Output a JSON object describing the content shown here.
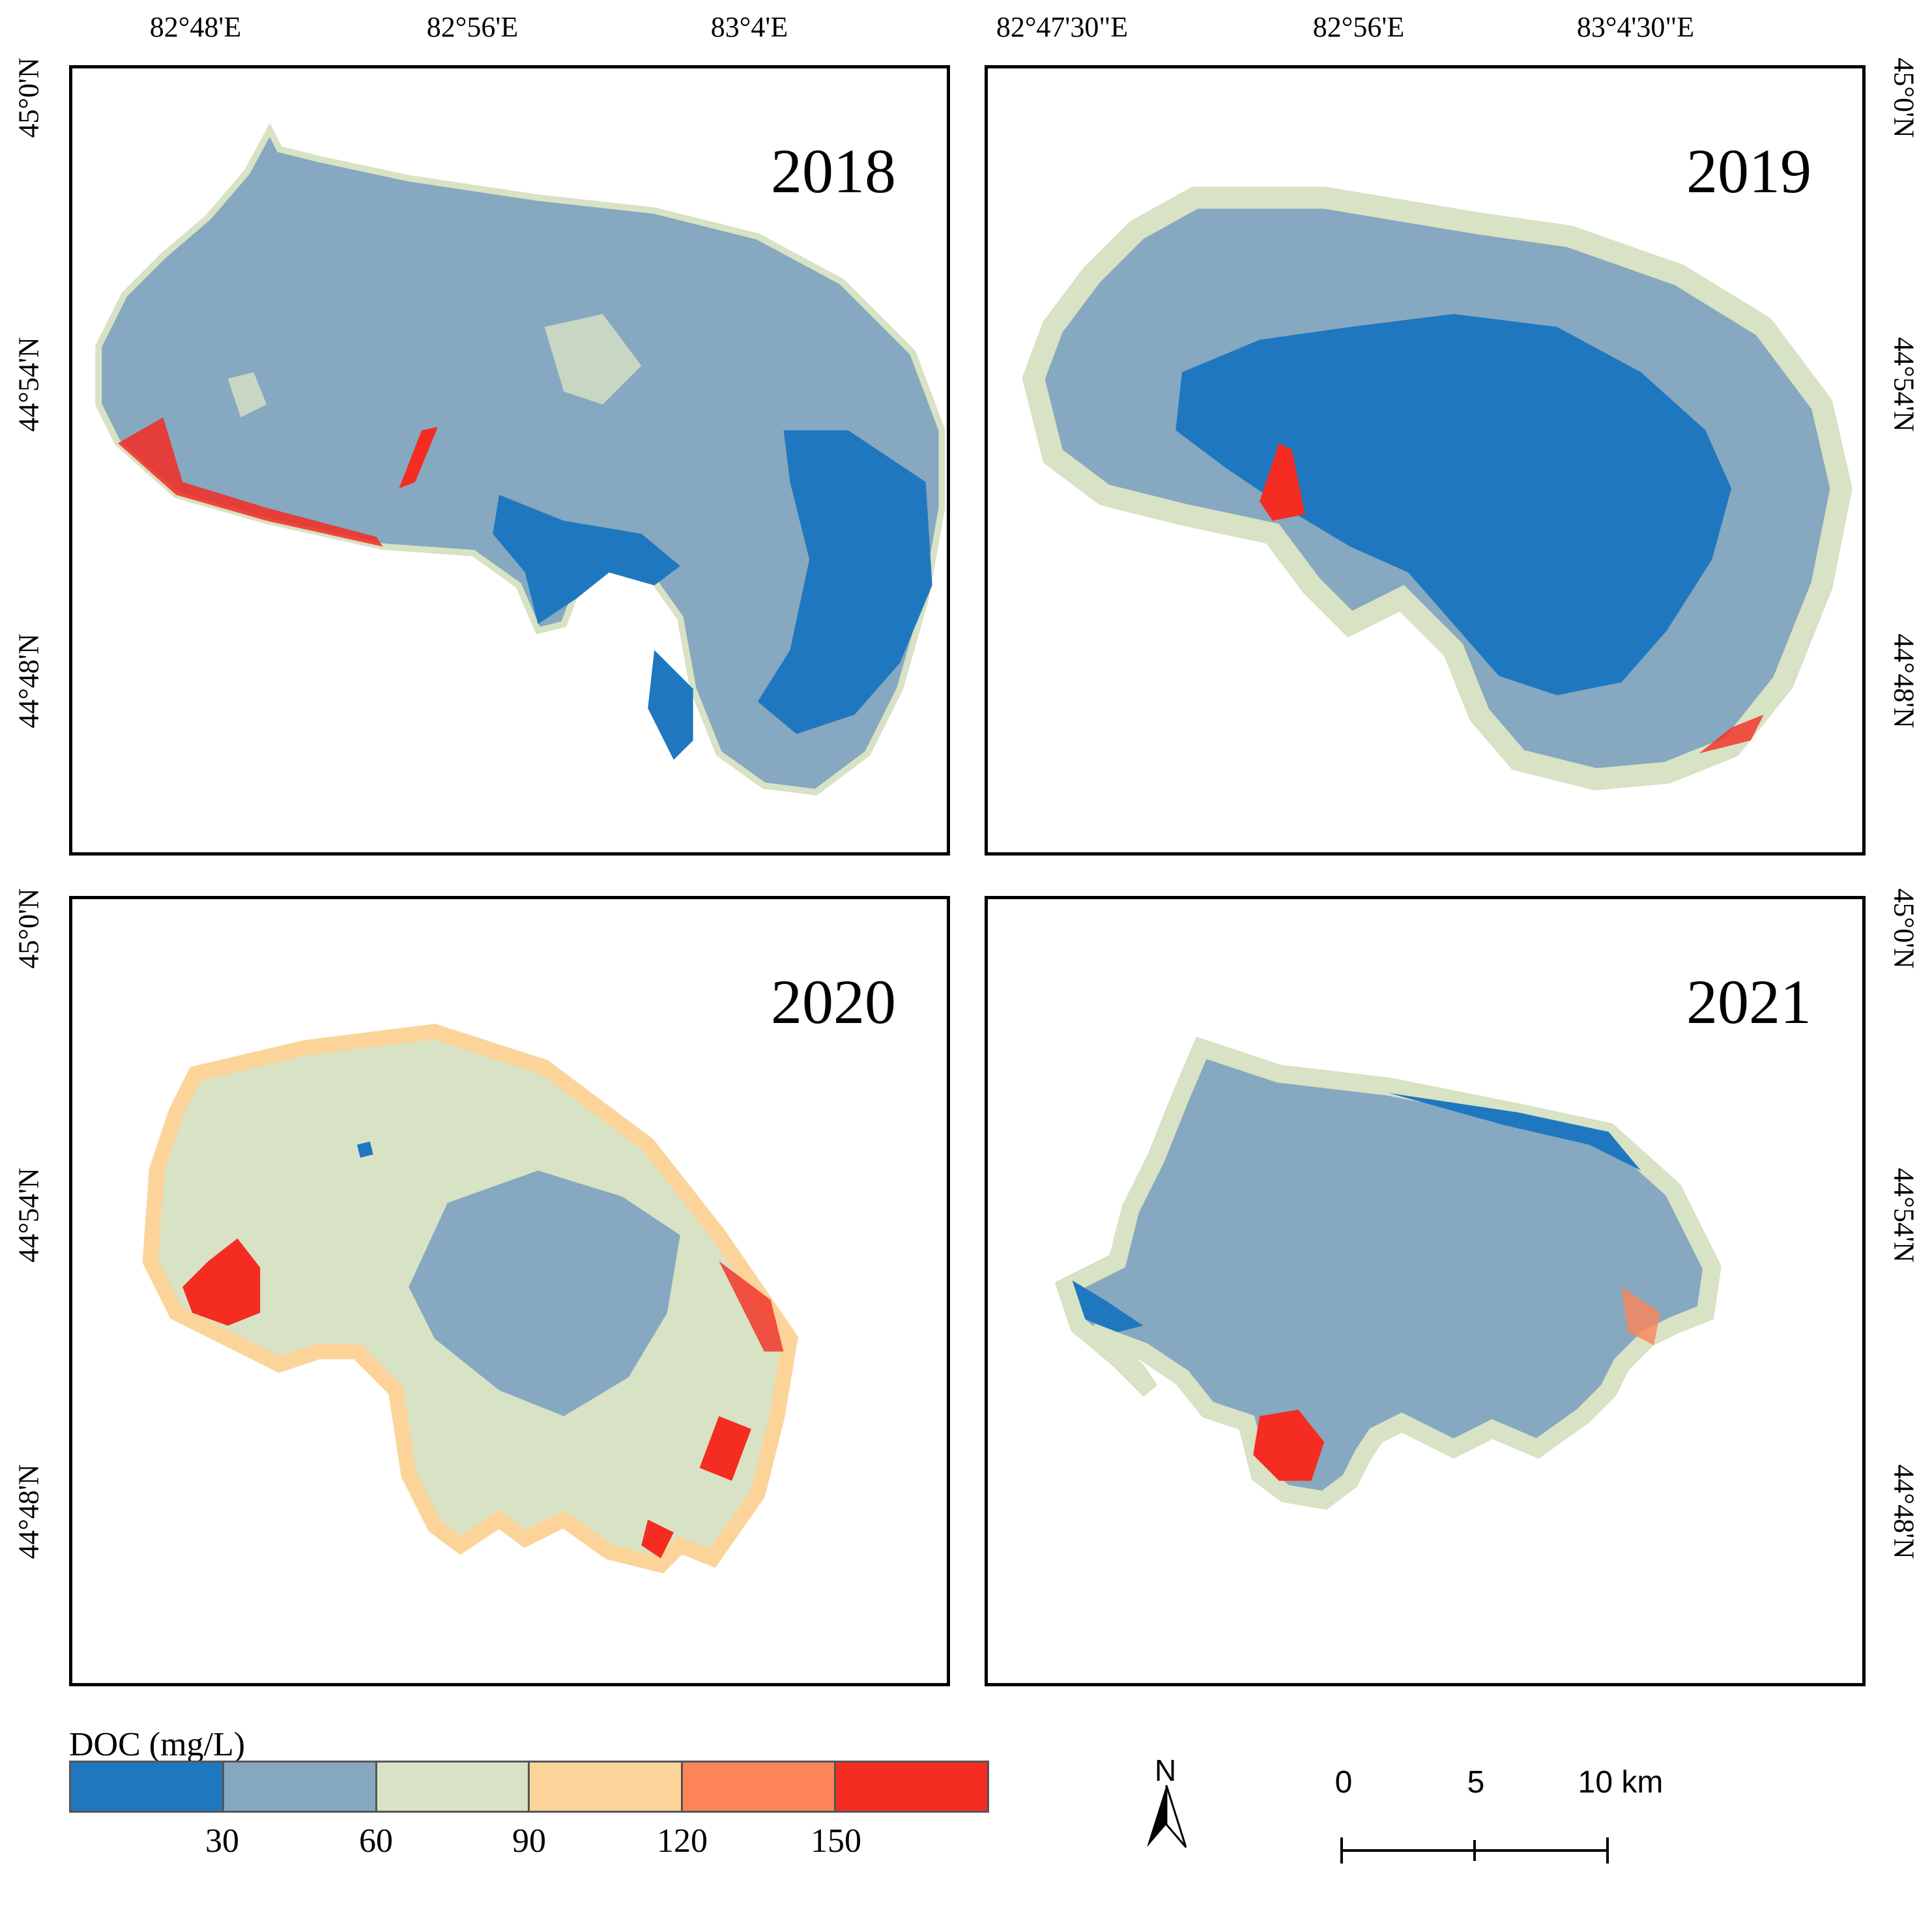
{
  "panels": [
    {
      "year": "2018"
    },
    {
      "year": "2019"
    },
    {
      "year": "2020"
    },
    {
      "year": "2021"
    }
  ],
  "axes": {
    "top_left_lon": [
      "82°48'E",
      "82°56'E",
      "83°4'E"
    ],
    "top_right_lon": [
      "82°47'30\"E",
      "82°56'E",
      "83°4'30\"E"
    ],
    "lat": [
      "45°0'N",
      "44°54'N",
      "44°48'N"
    ]
  },
  "legend": {
    "title": "DOC (mg/L)",
    "breaks": [
      "30",
      "60",
      "90",
      "120",
      "150"
    ],
    "colors": [
      "#1f78bf",
      "#86a8c0",
      "#d8e2c4",
      "#fcd49a",
      "#fd8557",
      "#f42c22"
    ]
  },
  "north_arrow": {
    "label": "N"
  },
  "scale_bar": {
    "labels": [
      "0",
      "5",
      "10 km"
    ]
  }
}
